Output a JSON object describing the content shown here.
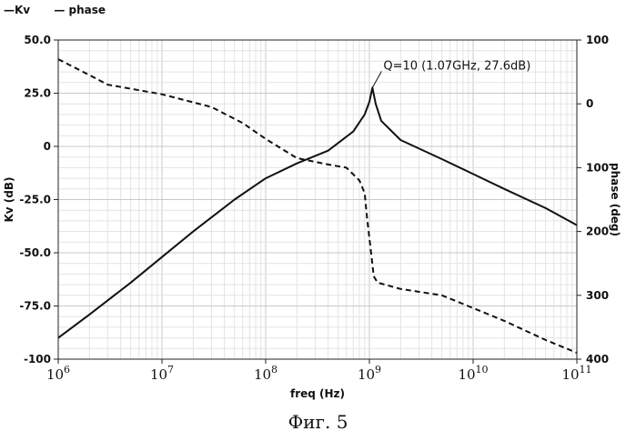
{
  "legend": [
    {
      "symbol": "—",
      "label": "Kv"
    },
    {
      "symbol": "—",
      "label": "phase"
    }
  ],
  "caption": "Фиг. 5",
  "chart_data": {
    "type": "line",
    "title": "",
    "xlabel": "freq (Hz)",
    "ylabel": "Kv (dB)",
    "y2label": "phase (deg)",
    "xscale": "log",
    "xlim": [
      1000000,
      100000000000
    ],
    "ylim": [
      -100,
      50
    ],
    "y2lim": [
      400,
      -100
    ],
    "grid": true,
    "legend_position": "top-left",
    "x_ticks": [
      {
        "value": 1000000,
        "base": "10",
        "exp": "6"
      },
      {
        "value": 10000000,
        "base": "10",
        "exp": "7"
      },
      {
        "value": 100000000,
        "base": "10",
        "exp": "8"
      },
      {
        "value": 1000000000,
        "base": "10",
        "exp": "9"
      },
      {
        "value": 10000000000,
        "base": "10",
        "exp": "10"
      },
      {
        "value": 100000000000,
        "base": "10",
        "exp": "11"
      }
    ],
    "y_ticks": [
      {
        "value": 50,
        "label": "50.0"
      },
      {
        "value": 25,
        "label": "25.0"
      },
      {
        "value": 0,
        "label": "0"
      },
      {
        "value": -25,
        "label": "-25.0"
      },
      {
        "value": -50,
        "label": "-50.0"
      },
      {
        "value": -75,
        "label": "-75.0"
      },
      {
        "value": -100,
        "label": "-100"
      }
    ],
    "y2_ticks": [
      {
        "value": -100,
        "label": "100"
      },
      {
        "value": 0,
        "label": "0"
      },
      {
        "value": 100,
        "label": "100"
      },
      {
        "value": 200,
        "label": "200"
      },
      {
        "value": 300,
        "label": "300"
      },
      {
        "value": 400,
        "label": "400"
      }
    ],
    "series": [
      {
        "name": "Kv",
        "axis": "left",
        "color": "#111111",
        "dash": "solid",
        "points": [
          [
            1000000,
            -90
          ],
          [
            2000000,
            -79
          ],
          [
            5000000,
            -64
          ],
          [
            10000000,
            -52
          ],
          [
            20000000,
            -40
          ],
          [
            50000000,
            -25
          ],
          [
            100000000,
            -15
          ],
          [
            200000000,
            -8
          ],
          [
            400000000,
            -2
          ],
          [
            700000000,
            7
          ],
          [
            900000000,
            15
          ],
          [
            1000000000,
            21
          ],
          [
            1070000000,
            27.6
          ],
          [
            1150000000,
            20
          ],
          [
            1300000000,
            12
          ],
          [
            2000000000,
            3
          ],
          [
            5000000000,
            -6
          ],
          [
            10000000000,
            -13
          ],
          [
            20000000000,
            -20
          ],
          [
            50000000000,
            -29
          ],
          [
            100000000000,
            -37
          ]
        ]
      },
      {
        "name": "phase",
        "axis": "right",
        "color": "#111111",
        "dash": "dashed",
        "points": [
          [
            1000000,
            -70
          ],
          [
            2000000,
            -45
          ],
          [
            3000000,
            -30
          ],
          [
            10000000,
            -15
          ],
          [
            30000000,
            5
          ],
          [
            60000000,
            30
          ],
          [
            100000000,
            55
          ],
          [
            200000000,
            85
          ],
          [
            400000000,
            95
          ],
          [
            600000000,
            100
          ],
          [
            800000000,
            120
          ],
          [
            900000000,
            140
          ],
          [
            950000000,
            180
          ],
          [
            1050000000,
            240
          ],
          [
            1100000000,
            270
          ],
          [
            1200000000,
            280
          ],
          [
            2000000000,
            290
          ],
          [
            5000000000,
            300
          ],
          [
            10000000000,
            320
          ],
          [
            20000000000,
            340
          ],
          [
            50000000000,
            370
          ],
          [
            100000000000,
            390
          ]
        ]
      }
    ],
    "annotations": [
      {
        "text": "Q=10 (1.07GHz, 27.6dB)",
        "x": 1070000000,
        "y": 27.6
      }
    ]
  }
}
